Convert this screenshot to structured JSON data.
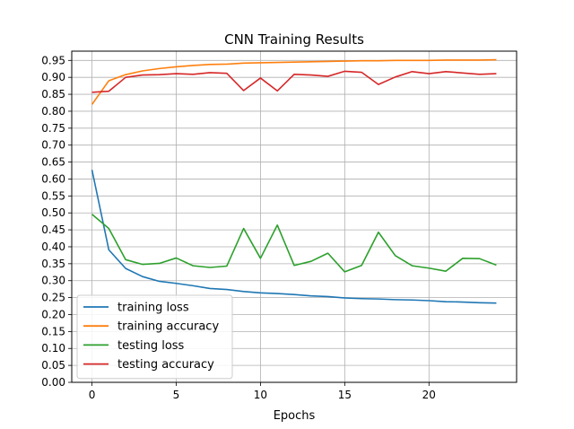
{
  "chart_data": {
    "type": "line",
    "title": "CNN Training Results",
    "xlabel": "Epochs",
    "ylabel": "",
    "xlim": [
      -1.2,
      25.2
    ],
    "ylim": [
      0.0,
      0.9773
    ],
    "xticks": [
      0,
      5,
      10,
      15,
      20
    ],
    "yticks": [
      0.0,
      0.05,
      0.1,
      0.15,
      0.2,
      0.25,
      0.3,
      0.35,
      0.4,
      0.45,
      0.5,
      0.55,
      0.6,
      0.65,
      0.7,
      0.75,
      0.8,
      0.85,
      0.9,
      0.95
    ],
    "grid": true,
    "legend_position": "lower-left",
    "x": [
      0,
      1,
      2,
      3,
      4,
      5,
      6,
      7,
      8,
      9,
      10,
      11,
      12,
      13,
      14,
      15,
      16,
      17,
      18,
      19,
      20,
      21,
      22,
      23,
      24
    ],
    "series": [
      {
        "name": "training loss",
        "color": "#1f77b4",
        "values": [
          0.627,
          0.391,
          0.336,
          0.312,
          0.298,
          0.292,
          0.285,
          0.277,
          0.274,
          0.268,
          0.264,
          0.262,
          0.259,
          0.255,
          0.253,
          0.249,
          0.247,
          0.246,
          0.244,
          0.243,
          0.241,
          0.238,
          0.237,
          0.235,
          0.234
        ]
      },
      {
        "name": "training accuracy",
        "color": "#ff7f0e",
        "values": [
          0.82,
          0.89,
          0.908,
          0.919,
          0.926,
          0.931,
          0.935,
          0.938,
          0.939,
          0.942,
          0.943,
          0.944,
          0.945,
          0.946,
          0.947,
          0.948,
          0.949,
          0.949,
          0.95,
          0.95,
          0.95,
          0.951,
          0.951,
          0.951,
          0.952
        ]
      },
      {
        "name": "testing loss",
        "color": "#2ca02c",
        "values": [
          0.496,
          0.454,
          0.362,
          0.348,
          0.351,
          0.367,
          0.344,
          0.339,
          0.343,
          0.454,
          0.366,
          0.464,
          0.345,
          0.357,
          0.381,
          0.326,
          0.345,
          0.443,
          0.374,
          0.344,
          0.337,
          0.328,
          0.366,
          0.365,
          0.346
        ]
      },
      {
        "name": "testing accuracy",
        "color": "#d62728",
        "values": [
          0.856,
          0.859,
          0.9,
          0.907,
          0.908,
          0.911,
          0.909,
          0.914,
          0.912,
          0.861,
          0.898,
          0.86,
          0.909,
          0.907,
          0.903,
          0.918,
          0.915,
          0.879,
          0.901,
          0.917,
          0.911,
          0.917,
          0.913,
          0.909,
          0.911
        ]
      }
    ]
  }
}
